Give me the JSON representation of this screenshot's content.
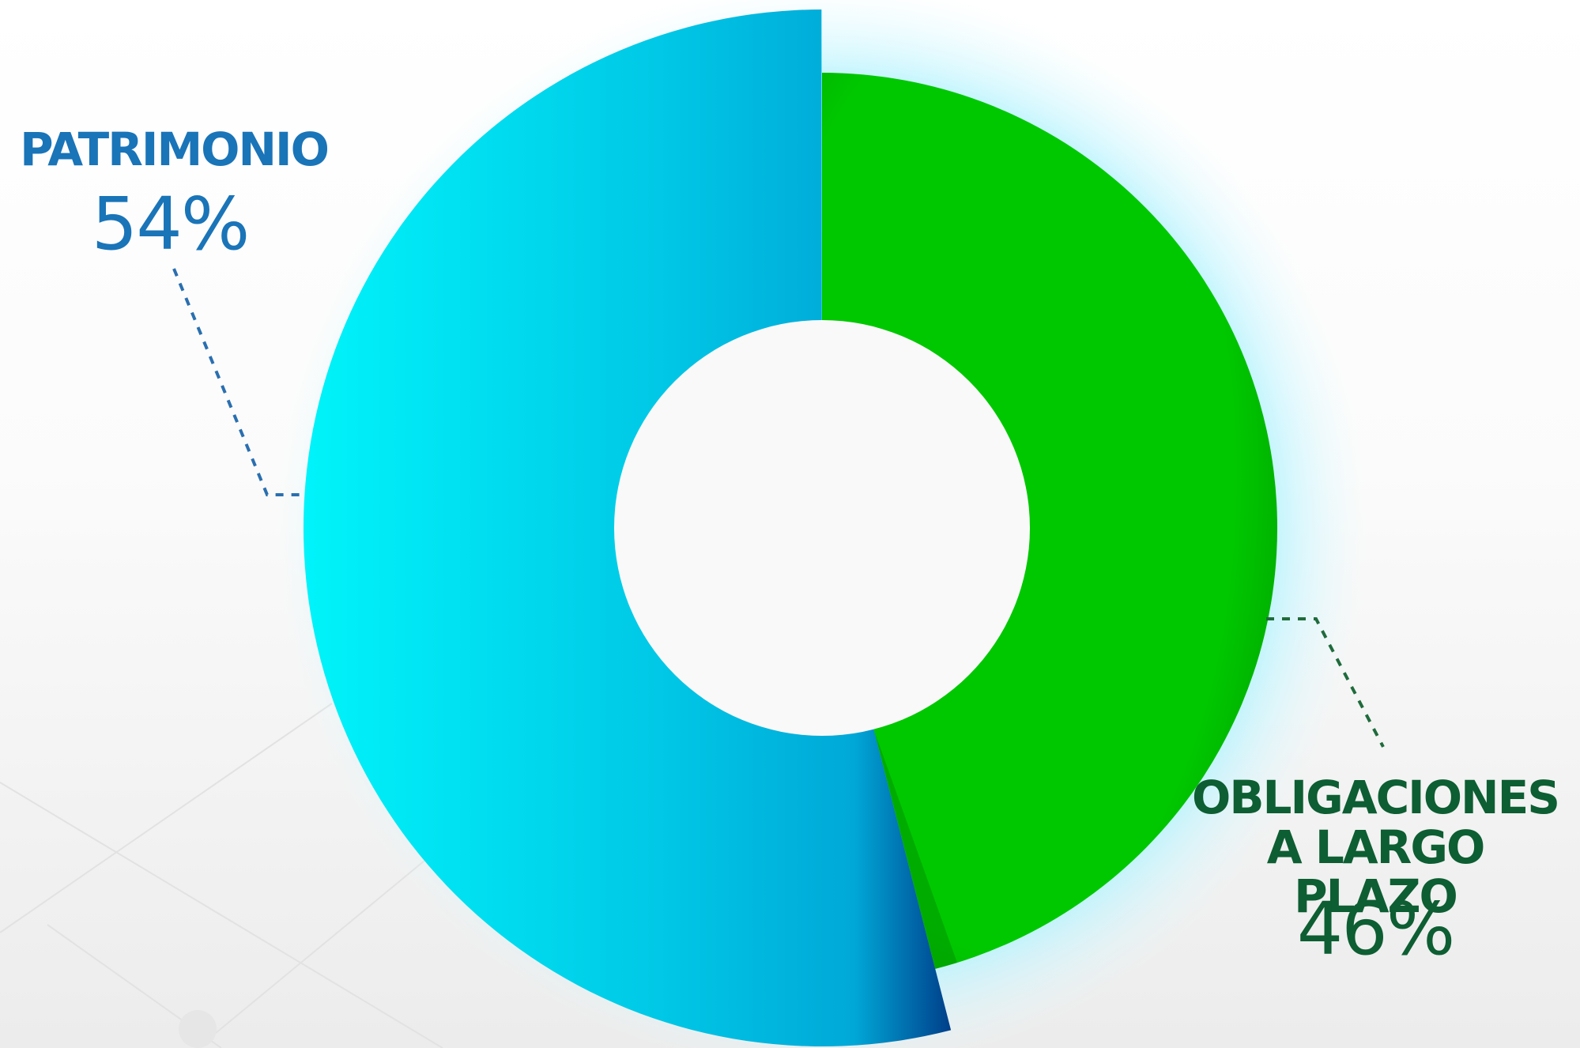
{
  "chart_data": {
    "type": "pie",
    "variant": "donut",
    "slices": [
      {
        "label": "PATRIMONIO",
        "value": 54,
        "display": "54%",
        "color": "#00b4dc",
        "label_color": "#1a74b8",
        "leader_color": "#2a6fb0"
      },
      {
        "label_lines": [
          "OBLIGACIONES",
          "A LARGO PLAZO"
        ],
        "value": 46,
        "display": "46%",
        "color": "#00c800",
        "label_color": "#0d5e32",
        "leader_color": "#1f6b3c"
      }
    ],
    "legend": "none"
  }
}
